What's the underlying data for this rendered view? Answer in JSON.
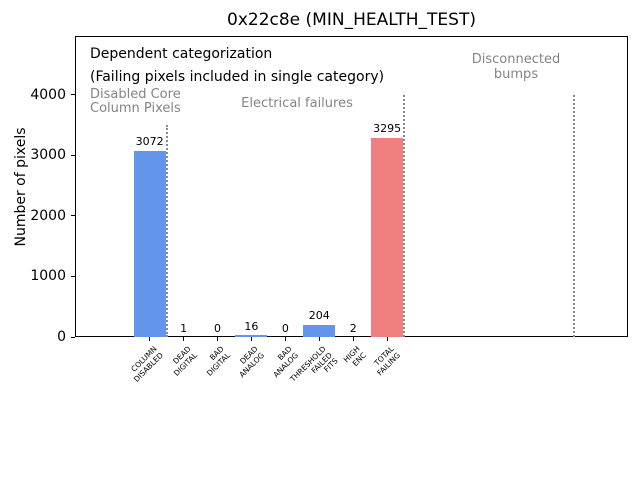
{
  "annotations": {
    "dependent": "Dependent categorization",
    "failing_note": "(Failing pixels included in single category)",
    "disabled_core": "Disabled Core\nColumn Pixels",
    "electrical": "Electrical failures",
    "disconnected": "Disconnected\nbumps"
  },
  "chart_data": {
    "type": "bar",
    "title": "0x22c8e (MIN_HEALTH_TEST)",
    "ylabel": "Number of pixels",
    "xlabel": "",
    "categories": [
      "COLUMN\nDISABLED",
      "DEAD\nDIGITAL",
      "BAD\nDIGITAL",
      "DEAD\nANALOG",
      "BAD\nANALOG",
      "THRESHOLD\nFAILED\nFITS",
      "HIGH\nENC",
      "TOTAL\nFAILING"
    ],
    "values": [
      3072,
      1,
      0,
      16,
      0,
      204,
      2,
      3295
    ],
    "bar_colors": [
      "#6495ED",
      "#6495ED",
      "#6495ED",
      "#6495ED",
      "#6495ED",
      "#6495ED",
      "#6495ED",
      "#F08080"
    ],
    "yticks": [
      0,
      1000,
      2000,
      3000,
      4000
    ],
    "ylim": [
      0,
      4975
    ],
    "xlim": [
      -2.2,
      14.1
    ],
    "bar_width_units": 0.94,
    "separators": [
      {
        "x": 0.5,
        "ymax": 3500
      },
      {
        "x": 7.5,
        "ymax": 4000
      },
      {
        "x": 12.5,
        "ymax": 4000
      }
    ],
    "separator_color": "#8a8a8a",
    "grid": false,
    "legend": "none"
  }
}
